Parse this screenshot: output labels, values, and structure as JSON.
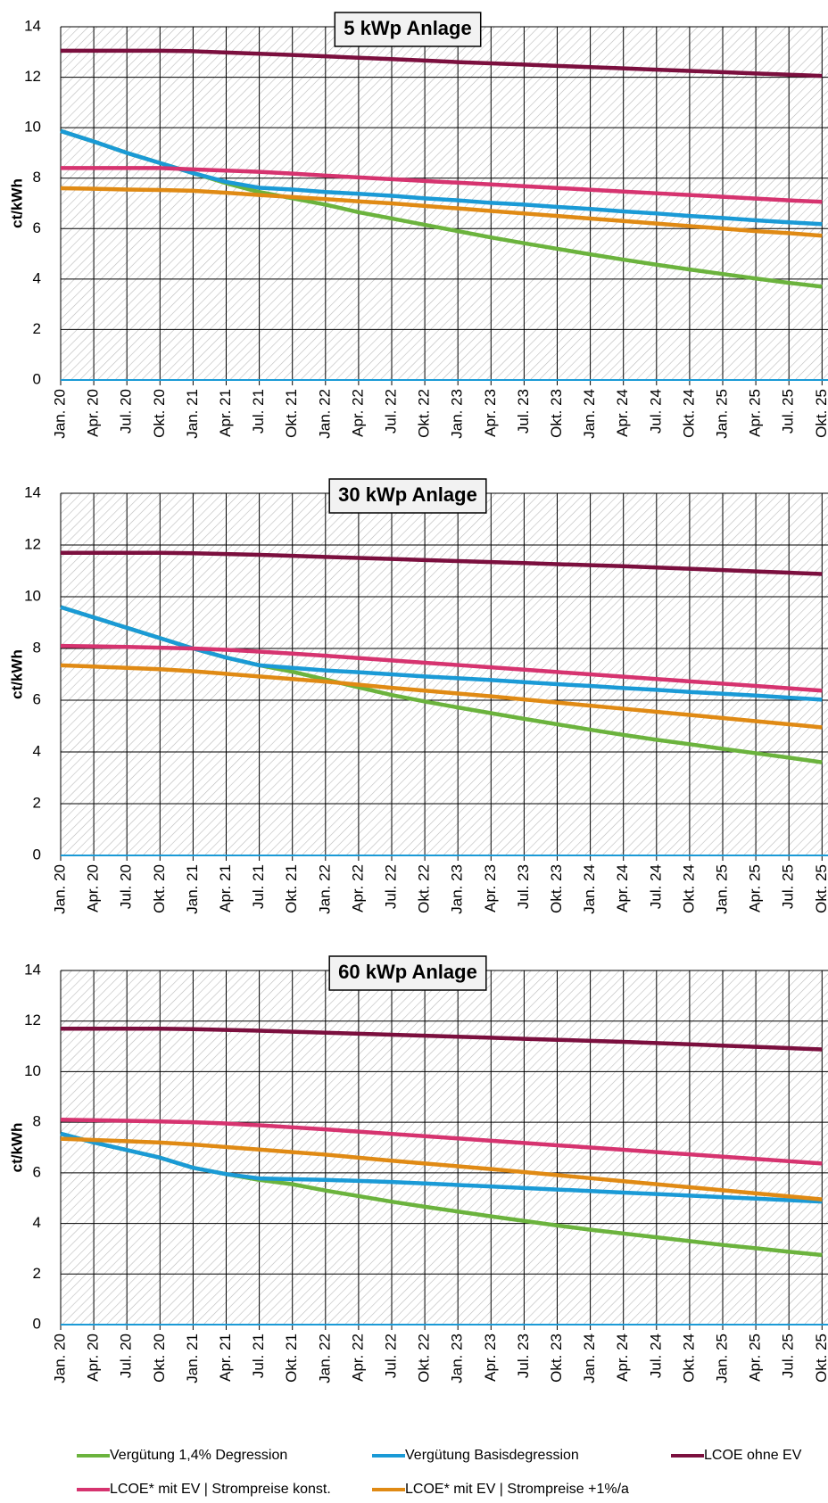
{
  "chart_data": [
    {
      "type": "line",
      "title": "5 kWp Anlage",
      "y_label": "ct/kWh",
      "categories": [
        "Jan. 20",
        "Apr. 20",
        "Jul. 20",
        "Okt. 20",
        "Jan. 21",
        "Apr. 21",
        "Jul. 21",
        "Okt. 21",
        "Jan. 22",
        "Apr. 22",
        "Jul. 22",
        "Okt. 22",
        "Jan. 23",
        "Apr. 23",
        "Jul. 23",
        "Okt. 23",
        "Jan. 24",
        "Apr. 24",
        "Jul. 24",
        "Okt. 24",
        "Jan. 25",
        "Apr. 25",
        "Jul. 25",
        "Okt. 25"
      ],
      "ylim": [
        0,
        14
      ],
      "yticks": [
        0,
        2,
        4,
        6,
        8,
        10,
        12,
        14
      ],
      "grid": true,
      "series": [
        {
          "name": "Vergütung 1,4% Degression",
          "color": "#6bb33d",
          "values": [
            9.87,
            9.45,
            9.0,
            8.6,
            8.2,
            7.8,
            7.45,
            7.2,
            6.95,
            6.65,
            6.4,
            6.15,
            5.9,
            5.65,
            5.42,
            5.2,
            4.98,
            4.77,
            4.57,
            4.38,
            4.2,
            4.02,
            3.85,
            3.7
          ]
        },
        {
          "name": "Vergütung Basisdegression",
          "color": "#1a9ad6",
          "values": [
            9.87,
            9.45,
            9.0,
            8.6,
            8.2,
            7.85,
            7.62,
            7.55,
            7.45,
            7.38,
            7.3,
            7.2,
            7.12,
            7.02,
            6.95,
            6.86,
            6.78,
            6.68,
            6.6,
            6.5,
            6.42,
            6.33,
            6.25,
            6.18
          ]
        },
        {
          "name": "LCOE ohne EV",
          "color": "#7b0f3e",
          "values": [
            13.05,
            13.05,
            13.05,
            13.05,
            13.03,
            12.98,
            12.93,
            12.88,
            12.83,
            12.77,
            12.72,
            12.66,
            12.6,
            12.55,
            12.5,
            12.45,
            12.4,
            12.35,
            12.3,
            12.25,
            12.2,
            12.15,
            12.1,
            12.05
          ]
        },
        {
          "name": "LCOE* mit EV | Strompreise konst.",
          "color": "#d6336f",
          "values": [
            8.4,
            8.4,
            8.4,
            8.4,
            8.35,
            8.3,
            8.25,
            8.18,
            8.1,
            8.03,
            7.96,
            7.89,
            7.82,
            7.75,
            7.68,
            7.61,
            7.54,
            7.47,
            7.4,
            7.33,
            7.26,
            7.19,
            7.12,
            7.06
          ]
        },
        {
          "name": "LCOE* mit EV | Strompreise +1%/a",
          "color": "#e08a14",
          "values": [
            7.6,
            7.58,
            7.55,
            7.53,
            7.5,
            7.42,
            7.33,
            7.25,
            7.17,
            7.08,
            7.0,
            6.9,
            6.8,
            6.7,
            6.6,
            6.5,
            6.4,
            6.3,
            6.2,
            6.1,
            6.0,
            5.9,
            5.82,
            5.72
          ]
        }
      ]
    },
    {
      "type": "line",
      "title": "30 kWp Anlage",
      "y_label": "ct/kWh",
      "categories": [
        "Jan. 20",
        "Apr. 20",
        "Jul. 20",
        "Okt. 20",
        "Jan. 21",
        "Apr. 21",
        "Jul. 21",
        "Okt. 21",
        "Jan. 22",
        "Apr. 22",
        "Jul. 22",
        "Okt. 22",
        "Jan. 23",
        "Apr. 23",
        "Jul. 23",
        "Okt. 23",
        "Jan. 24",
        "Apr. 24",
        "Jul. 24",
        "Okt. 24",
        "Jan. 25",
        "Apr. 25",
        "Jul. 25",
        "Okt. 25"
      ],
      "ylim": [
        0,
        14
      ],
      "yticks": [
        0,
        2,
        4,
        6,
        8,
        10,
        12,
        14
      ],
      "grid": true,
      "series": [
        {
          "color": "#6bb33d",
          "values": [
            9.6,
            9.2,
            8.8,
            8.4,
            8.0,
            7.65,
            7.35,
            7.1,
            6.8,
            6.5,
            6.2,
            5.95,
            5.72,
            5.5,
            5.28,
            5.07,
            4.86,
            4.66,
            4.47,
            4.3,
            4.12,
            3.95,
            3.78,
            3.6
          ]
        },
        {
          "color": "#1a9ad6",
          "values": [
            9.6,
            9.2,
            8.8,
            8.4,
            8.0,
            7.65,
            7.35,
            7.25,
            7.15,
            7.08,
            7.0,
            6.92,
            6.85,
            6.78,
            6.7,
            6.62,
            6.55,
            6.47,
            6.4,
            6.32,
            6.25,
            6.18,
            6.1,
            6.02
          ]
        },
        {
          "color": "#7b0f3e",
          "values": [
            11.7,
            11.7,
            11.7,
            11.7,
            11.68,
            11.65,
            11.62,
            11.58,
            11.54,
            11.5,
            11.46,
            11.42,
            11.38,
            11.34,
            11.3,
            11.26,
            11.22,
            11.18,
            11.13,
            11.08,
            11.03,
            10.98,
            10.93,
            10.88
          ]
        },
        {
          "color": "#d6336f",
          "values": [
            8.1,
            8.08,
            8.06,
            8.03,
            8.0,
            7.95,
            7.88,
            7.8,
            7.72,
            7.63,
            7.54,
            7.45,
            7.36,
            7.27,
            7.18,
            7.09,
            7.0,
            6.91,
            6.82,
            6.73,
            6.64,
            6.55,
            6.46,
            6.37
          ]
        },
        {
          "color": "#e08a14",
          "values": [
            7.35,
            7.3,
            7.25,
            7.2,
            7.12,
            7.02,
            6.92,
            6.82,
            6.72,
            6.6,
            6.48,
            6.37,
            6.26,
            6.15,
            6.03,
            5.91,
            5.79,
            5.67,
            5.55,
            5.43,
            5.31,
            5.19,
            5.07,
            4.95
          ]
        }
      ]
    },
    {
      "type": "line",
      "title": "60 kWp Anlage",
      "y_label": "ct/kWh",
      "categories": [
        "Jan. 20",
        "Apr. 20",
        "Jul. 20",
        "Okt. 20",
        "Jan. 21",
        "Apr. 21",
        "Jul. 21",
        "Okt. 21",
        "Jan. 22",
        "Apr. 22",
        "Jul. 22",
        "Okt. 22",
        "Jan. 23",
        "Apr. 23",
        "Jul. 23",
        "Okt. 23",
        "Jan. 24",
        "Apr. 24",
        "Jul. 24",
        "Okt. 24",
        "Jan. 25",
        "Apr. 25",
        "Jul. 25",
        "Okt. 25"
      ],
      "ylim": [
        0,
        14
      ],
      "yticks": [
        0,
        2,
        4,
        6,
        8,
        10,
        12,
        14
      ],
      "grid": true,
      "series": [
        {
          "color": "#6bb33d",
          "values": [
            7.55,
            7.2,
            6.9,
            6.6,
            6.2,
            5.95,
            5.72,
            5.55,
            5.3,
            5.08,
            4.86,
            4.66,
            4.47,
            4.28,
            4.1,
            3.92,
            3.75,
            3.6,
            3.45,
            3.3,
            3.15,
            3.02,
            2.88,
            2.75
          ]
        },
        {
          "color": "#1a9ad6",
          "values": [
            7.55,
            7.2,
            6.9,
            6.6,
            6.2,
            5.95,
            5.78,
            5.75,
            5.72,
            5.68,
            5.64,
            5.58,
            5.52,
            5.46,
            5.4,
            5.34,
            5.28,
            5.22,
            5.16,
            5.1,
            5.04,
            4.98,
            4.92,
            4.86
          ]
        },
        {
          "color": "#7b0f3e",
          "values": [
            11.7,
            11.7,
            11.7,
            11.7,
            11.68,
            11.65,
            11.62,
            11.58,
            11.54,
            11.5,
            11.46,
            11.42,
            11.38,
            11.34,
            11.3,
            11.26,
            11.22,
            11.18,
            11.13,
            11.08,
            11.03,
            10.98,
            10.93,
            10.88
          ]
        },
        {
          "color": "#d6336f",
          "values": [
            8.1,
            8.08,
            8.06,
            8.03,
            8.0,
            7.95,
            7.88,
            7.8,
            7.72,
            7.63,
            7.54,
            7.45,
            7.36,
            7.27,
            7.18,
            7.09,
            7.0,
            6.91,
            6.82,
            6.73,
            6.64,
            6.55,
            6.46,
            6.37
          ]
        },
        {
          "color": "#e08a14",
          "values": [
            7.35,
            7.3,
            7.25,
            7.2,
            7.12,
            7.02,
            6.92,
            6.82,
            6.72,
            6.6,
            6.48,
            6.37,
            6.26,
            6.15,
            6.03,
            5.91,
            5.79,
            5.67,
            5.55,
            5.43,
            5.31,
            5.19,
            5.07,
            4.95
          ]
        }
      ]
    }
  ]
}
